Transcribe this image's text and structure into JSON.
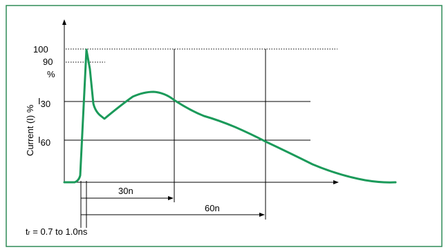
{
  "figure": {
    "y_axis_label": "Current (I) %",
    "levels": {
      "peak": "100",
      "ninety": "90",
      "percent": "%",
      "i30_main": "I",
      "i30_sub": "30",
      "i60_main": "I",
      "i60_sub": "60"
    },
    "durations": {
      "t30": "30n",
      "t60": "60n"
    },
    "rise_time": {
      "prefix": "t",
      "sub": "r",
      "rest": " = 0.7 to 1.0ns"
    }
  },
  "colors": {
    "frame": "#2e8b57",
    "curve": "#1b9a5a",
    "lines": "#000000"
  }
}
